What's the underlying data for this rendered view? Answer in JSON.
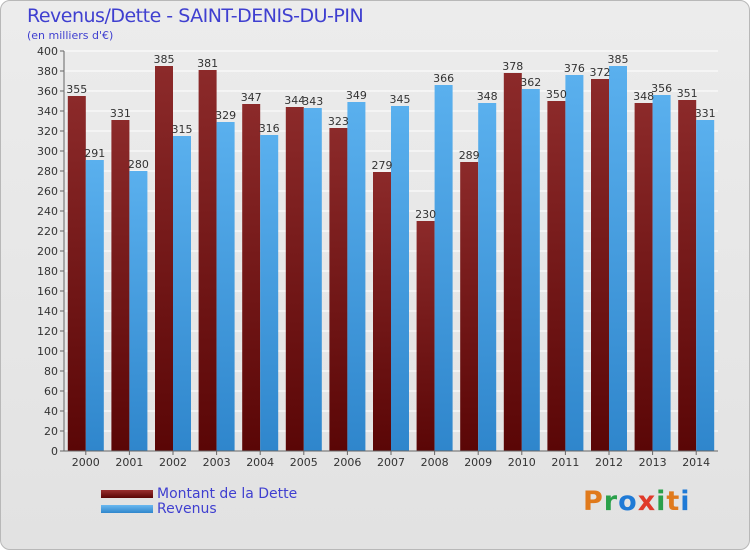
{
  "title": "Revenus/Dette - SAINT-DENIS-DU-PIN",
  "subtitle": "(en milliers d'€)",
  "legend": [
    {
      "label": "Montant de la Dette",
      "color": "#7a1a1a"
    },
    {
      "label": "Revenus",
      "color": "#4aa3e6"
    }
  ],
  "logo": {
    "text": "Proxiti",
    "colors": [
      "#e07a1c",
      "#2aa04a",
      "#1f7ad6",
      "#e03a2a",
      "#2aa04a",
      "#e07a1c",
      "#1f7ad6"
    ]
  },
  "chart_data": {
    "type": "bar",
    "categories": [
      "2000",
      "2001",
      "2002",
      "2003",
      "2004",
      "2005",
      "2006",
      "2007",
      "2008",
      "2009",
      "2010",
      "2011",
      "2012",
      "2013",
      "2014"
    ],
    "series": [
      {
        "name": "Montant de la Dette",
        "color": "#7a1a1a",
        "values": [
          355,
          331,
          385,
          381,
          347,
          344,
          323,
          279,
          230,
          289,
          378,
          350,
          372,
          348,
          351
        ]
      },
      {
        "name": "Revenus",
        "color": "#4aa3e6",
        "values": [
          291,
          280,
          315,
          329,
          316,
          343,
          349,
          345,
          366,
          348,
          362,
          376,
          385,
          356,
          331
        ]
      }
    ],
    "ylim": [
      0,
      400
    ],
    "ytick_step": 20,
    "grid": true,
    "legend_position": "bottom-left"
  }
}
